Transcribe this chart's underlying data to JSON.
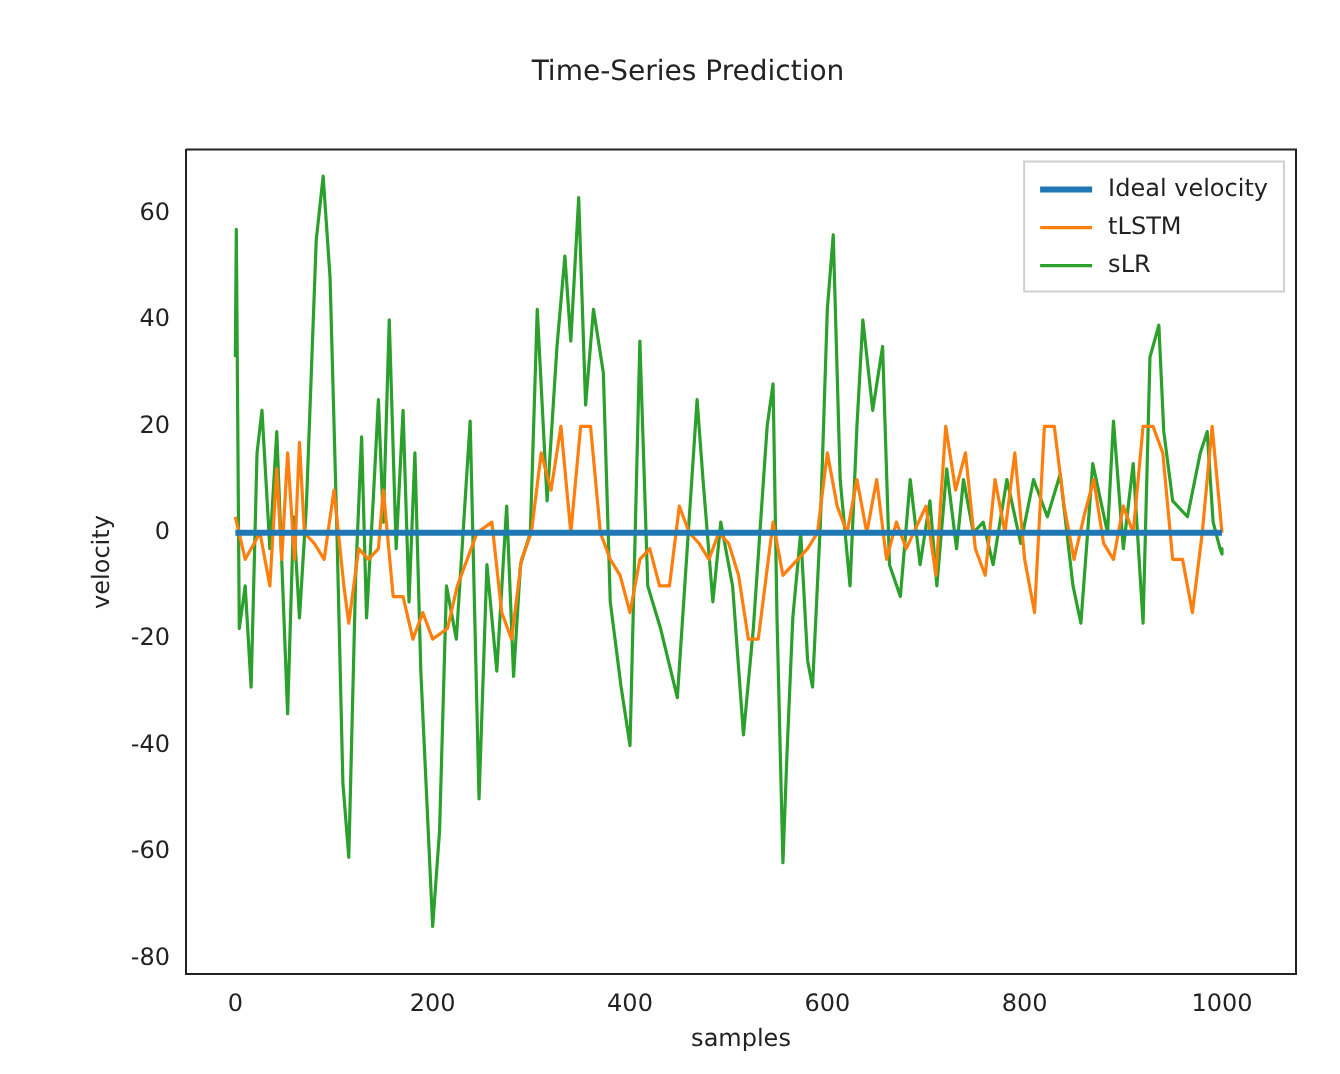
{
  "chart_data": {
    "type": "line",
    "title": "Time-Series Prediction",
    "xlabel": "samples",
    "ylabel": "velocity",
    "xlim": [
      -50,
      1075
    ],
    "xticks": [
      0,
      200,
      400,
      600,
      800,
      1000
    ],
    "ylim": [
      -83,
      72
    ],
    "yticks": [
      -80,
      -60,
      -40,
      -20,
      0,
      20,
      40,
      60
    ],
    "legend": "top right",
    "grid": false,
    "marker": "none",
    "line_style": "solid",
    "series": [
      {
        "name": "Ideal velocity",
        "color": "#1f77b4",
        "x": [
          0,
          1000
        ],
        "values": [
          0,
          0
        ]
      },
      {
        "name": "tLSTM",
        "color": "#ff7f0e",
        "x": [
          0,
          10,
          25,
          35,
          42,
          47,
          53,
          60,
          65,
          70,
          80,
          90,
          100,
          110,
          115,
          125,
          135,
          145,
          150,
          160,
          170,
          180,
          190,
          200,
          215,
          225,
          235,
          245,
          260,
          270,
          280,
          290,
          300,
          310,
          320,
          330,
          340,
          350,
          360,
          370,
          380,
          390,
          400,
          410,
          420,
          430,
          440,
          450,
          460,
          470,
          480,
          490,
          500,
          510,
          520,
          530,
          545,
          555,
          570,
          580,
          590,
          600,
          610,
          620,
          630,
          640,
          650,
          660,
          670,
          680,
          700,
          710,
          720,
          730,
          740,
          750,
          760,
          770,
          780,
          790,
          800,
          810,
          820,
          830,
          840,
          850,
          860,
          870,
          880,
          890,
          900,
          910,
          920,
          930,
          940,
          950,
          960,
          970,
          980,
          990,
          1000
        ],
        "values": [
          3,
          -5,
          0,
          -10,
          12,
          -5,
          15,
          -5,
          17,
          0,
          -2,
          -5,
          8,
          -10,
          -17,
          -3,
          -5,
          -3,
          8,
          -12,
          -12,
          -20,
          -15,
          -20,
          -18,
          -10,
          -5,
          0,
          2,
          -15,
          -20,
          -5,
          0,
          15,
          8,
          20,
          0,
          20,
          20,
          0,
          -5,
          -8,
          -15,
          -5,
          -3,
          -10,
          -10,
          5,
          0,
          -2,
          -5,
          0,
          -2,
          -8,
          -20,
          -20,
          2,
          -8,
          -5,
          -3,
          0,
          15,
          5,
          0,
          10,
          0,
          10,
          -5,
          2,
          -3,
          5,
          -8,
          20,
          8,
          15,
          -3,
          -8,
          10,
          0,
          15,
          -5,
          -15,
          20,
          20,
          5,
          -5,
          3,
          10,
          -2,
          -5,
          5,
          0,
          20,
          20,
          15,
          -5,
          -5,
          -15,
          0,
          20,
          0
        ]
      },
      {
        "name": "sLR",
        "color": "#2ca02c",
        "x": [
          0,
          1,
          4,
          10,
          16,
          22,
          27,
          35,
          42,
          53,
          59,
          65,
          72,
          82,
          89,
          96,
          103,
          109,
          115,
          122,
          128,
          133,
          140,
          145,
          150,
          156,
          163,
          170,
          176,
          182,
          188,
          200,
          207,
          214,
          224,
          238,
          247,
          255,
          265,
          275,
          282,
          289,
          299,
          306,
          316,
          326,
          334,
          340,
          348,
          355,
          363,
          373,
          380,
          391,
          400,
          410,
          418,
          431,
          448,
          468,
          474,
          484,
          492,
          504,
          515,
          525,
          539,
          545,
          549,
          555,
          559,
          565,
          573,
          580,
          585,
          593,
          600,
          606,
          613,
          623,
          630,
          636,
          646,
          656,
          663,
          674,
          684,
          694,
          704,
          711,
          721,
          731,
          738,
          748,
          758,
          768,
          782,
          796,
          809,
          823,
          836,
          849,
          857,
          869,
          884,
          890,
          900,
          910,
          920,
          927,
          936,
          941,
          950,
          965,
          978,
          985,
          991,
          998,
          1000
        ],
        "values": [
          33,
          57,
          -18,
          -10,
          -29,
          15,
          23,
          -3,
          19,
          -34,
          3,
          -16,
          5,
          55,
          67,
          48,
          0,
          -47,
          -61,
          -8,
          18,
          -16,
          7,
          25,
          2,
          40,
          -3,
          23,
          -13,
          15,
          -26,
          -74,
          -56,
          -10,
          -20,
          21,
          -50,
          -6,
          -26,
          5,
          -27,
          -6,
          0,
          42,
          6,
          35,
          52,
          36,
          63,
          24,
          42,
          30,
          -13,
          -29,
          -40,
          36,
          -10,
          -18,
          -31,
          25,
          10,
          -13,
          2,
          -10,
          -38,
          -18,
          20,
          28,
          -16,
          -62,
          -42,
          -16,
          0,
          -24,
          -29,
          2,
          42,
          56,
          10,
          -10,
          20,
          40,
          23,
          35,
          -6,
          -12,
          10,
          -6,
          6,
          -10,
          12,
          -3,
          10,
          0,
          2,
          -6,
          10,
          -2,
          10,
          3,
          11,
          -10,
          -17,
          13,
          0,
          21,
          -3,
          13,
          -17,
          33,
          39,
          19,
          6,
          3,
          15,
          19,
          2,
          -3,
          -4
        ]
      }
    ]
  }
}
